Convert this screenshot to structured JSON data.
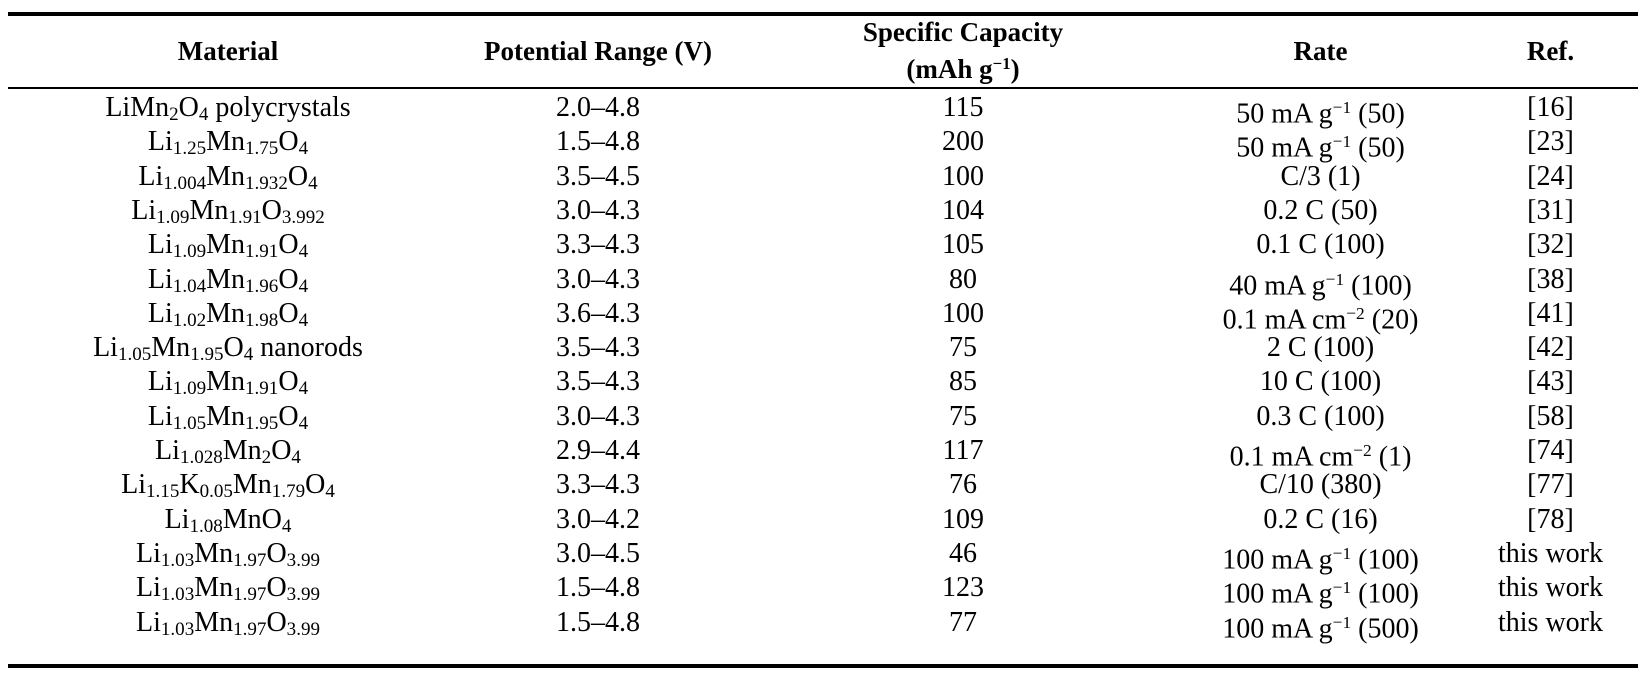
{
  "table": {
    "headers": {
      "material": "Material",
      "potential_range": "Potential Range (V)",
      "capacity_line1": "Specific Capacity",
      "capacity_line2_pre": "(mAh g",
      "capacity_line2_sup": "−1",
      "capacity_line2_post": ")",
      "rate": "Rate",
      "ref": "Ref."
    },
    "rows": [
      {
        "material": [
          [
            "t",
            "LiMn"
          ],
          [
            "s",
            "2"
          ],
          [
            "t",
            "O"
          ],
          [
            "s",
            "4"
          ],
          [
            "t",
            " polycrystals"
          ]
        ],
        "potential": "2.0–4.8",
        "capacity": "115",
        "rate": [
          [
            "t",
            "50 mA g"
          ],
          [
            "p",
            "−1"
          ],
          [
            "t",
            " (50)"
          ]
        ],
        "ref": "[16]"
      },
      {
        "material": [
          [
            "t",
            "Li"
          ],
          [
            "s",
            "1.25"
          ],
          [
            "t",
            "Mn"
          ],
          [
            "s",
            "1.75"
          ],
          [
            "t",
            "O"
          ],
          [
            "s",
            "4"
          ]
        ],
        "potential": "1.5–4.8",
        "capacity": "200",
        "rate": [
          [
            "t",
            "50 mA g"
          ],
          [
            "p",
            "−1"
          ],
          [
            "t",
            " (50)"
          ]
        ],
        "ref": "[23]"
      },
      {
        "material": [
          [
            "t",
            "Li"
          ],
          [
            "s",
            "1.004"
          ],
          [
            "t",
            "Mn"
          ],
          [
            "s",
            "1.932"
          ],
          [
            "t",
            "O"
          ],
          [
            "s",
            "4"
          ]
        ],
        "potential": "3.5–4.5",
        "capacity": "100",
        "rate": [
          [
            "t",
            "C/3 (1)"
          ]
        ],
        "ref": "[24]"
      },
      {
        "material": [
          [
            "t",
            "Li"
          ],
          [
            "s",
            "1.09"
          ],
          [
            "t",
            "Mn"
          ],
          [
            "s",
            "1.91"
          ],
          [
            "t",
            "O"
          ],
          [
            "s",
            "3.992"
          ]
        ],
        "potential": "3.0–4.3",
        "capacity": "104",
        "rate": [
          [
            "t",
            "0.2 C (50)"
          ]
        ],
        "ref": "[31]"
      },
      {
        "material": [
          [
            "t",
            "Li"
          ],
          [
            "s",
            "1.09"
          ],
          [
            "t",
            "Mn"
          ],
          [
            "s",
            "1.91"
          ],
          [
            "t",
            "O"
          ],
          [
            "s",
            "4"
          ]
        ],
        "potential": "3.3–4.3",
        "capacity": "105",
        "rate": [
          [
            "t",
            "0.1 C (100)"
          ]
        ],
        "ref": "[32]"
      },
      {
        "material": [
          [
            "t",
            "Li"
          ],
          [
            "s",
            "1.04"
          ],
          [
            "t",
            "Mn"
          ],
          [
            "s",
            "1.96"
          ],
          [
            "t",
            "O"
          ],
          [
            "s",
            "4"
          ]
        ],
        "potential": "3.0–4.3",
        "capacity": "80",
        "rate": [
          [
            "t",
            "40 mA g"
          ],
          [
            "p",
            "−1"
          ],
          [
            "t",
            " (100)"
          ]
        ],
        "ref": "[38]"
      },
      {
        "material": [
          [
            "t",
            "Li"
          ],
          [
            "s",
            "1.02"
          ],
          [
            "t",
            "Mn"
          ],
          [
            "s",
            "1.98"
          ],
          [
            "t",
            "O"
          ],
          [
            "s",
            "4"
          ]
        ],
        "potential": "3.6–4.3",
        "capacity": "100",
        "rate": [
          [
            "t",
            "0.1 mA cm"
          ],
          [
            "p",
            "−2"
          ],
          [
            "t",
            " (20)"
          ]
        ],
        "ref": "[41]"
      },
      {
        "material": [
          [
            "t",
            "Li"
          ],
          [
            "s",
            "1.05"
          ],
          [
            "t",
            "Mn"
          ],
          [
            "s",
            "1.95"
          ],
          [
            "t",
            "O"
          ],
          [
            "s",
            "4"
          ],
          [
            "t",
            " nanorods"
          ]
        ],
        "potential": "3.5–4.3",
        "capacity": "75",
        "rate": [
          [
            "t",
            "2 C (100)"
          ]
        ],
        "ref": "[42]"
      },
      {
        "material": [
          [
            "t",
            "Li"
          ],
          [
            "s",
            "1.09"
          ],
          [
            "t",
            "Mn"
          ],
          [
            "s",
            "1.91"
          ],
          [
            "t",
            "O"
          ],
          [
            "s",
            "4"
          ]
        ],
        "potential": "3.5–4.3",
        "capacity": "85",
        "rate": [
          [
            "t",
            "10 C (100)"
          ]
        ],
        "ref": "[43]"
      },
      {
        "material": [
          [
            "t",
            "Li"
          ],
          [
            "s",
            "1.05"
          ],
          [
            "t",
            "Mn"
          ],
          [
            "s",
            "1.95"
          ],
          [
            "t",
            "O"
          ],
          [
            "s",
            "4"
          ]
        ],
        "potential": "3.0–4.3",
        "capacity": "75",
        "rate": [
          [
            "t",
            "0.3 C (100)"
          ]
        ],
        "ref": "[58]"
      },
      {
        "material": [
          [
            "t",
            "Li"
          ],
          [
            "s",
            "1.028"
          ],
          [
            "t",
            "Mn"
          ],
          [
            "s",
            "2"
          ],
          [
            "t",
            "O"
          ],
          [
            "s",
            "4"
          ]
        ],
        "potential": "2.9–4.4",
        "capacity": "117",
        "rate": [
          [
            "t",
            "0.1 mA cm"
          ],
          [
            "p",
            "−2"
          ],
          [
            "t",
            " (1)"
          ]
        ],
        "ref": "[74]"
      },
      {
        "material": [
          [
            "t",
            "Li"
          ],
          [
            "s",
            "1.15"
          ],
          [
            "t",
            "K"
          ],
          [
            "s",
            "0.05"
          ],
          [
            "t",
            "Mn"
          ],
          [
            "s",
            "1.79"
          ],
          [
            "t",
            "O"
          ],
          [
            "s",
            "4"
          ]
        ],
        "potential": "3.3–4.3",
        "capacity": "76",
        "rate": [
          [
            "t",
            "C/10 (380)"
          ]
        ],
        "ref": "[77]"
      },
      {
        "material": [
          [
            "t",
            "Li"
          ],
          [
            "s",
            "1.08"
          ],
          [
            "t",
            "MnO"
          ],
          [
            "s",
            "4"
          ]
        ],
        "potential": "3.0–4.2",
        "capacity": "109",
        "rate": [
          [
            "t",
            "0.2 C (16)"
          ]
        ],
        "ref": "[78]"
      },
      {
        "material": [
          [
            "t",
            "Li"
          ],
          [
            "s",
            "1.03"
          ],
          [
            "t",
            "Mn"
          ],
          [
            "s",
            "1.97"
          ],
          [
            "t",
            "O"
          ],
          [
            "s",
            "3.99"
          ]
        ],
        "potential": "3.0–4.5",
        "capacity": "46",
        "rate": [
          [
            "t",
            "100 mA g"
          ],
          [
            "p",
            "−1"
          ],
          [
            "t",
            " (100)"
          ]
        ],
        "ref": "this work"
      },
      {
        "material": [
          [
            "t",
            "Li"
          ],
          [
            "s",
            "1.03"
          ],
          [
            "t",
            "Mn"
          ],
          [
            "s",
            "1.97"
          ],
          [
            "t",
            "O"
          ],
          [
            "s",
            "3.99"
          ]
        ],
        "potential": "1.5–4.8",
        "capacity": "123",
        "rate": [
          [
            "t",
            "100 mA g"
          ],
          [
            "p",
            "−1"
          ],
          [
            "t",
            " (100)"
          ]
        ],
        "ref": "this work"
      },
      {
        "material": [
          [
            "t",
            "Li"
          ],
          [
            "s",
            "1.03"
          ],
          [
            "t",
            "Mn"
          ],
          [
            "s",
            "1.97"
          ],
          [
            "t",
            "O"
          ],
          [
            "s",
            "3.99"
          ]
        ],
        "potential": "1.5–4.8",
        "capacity": "77",
        "rate": [
          [
            "t",
            "100 mA g"
          ],
          [
            "p",
            "−1"
          ],
          [
            "t",
            " (500)"
          ]
        ],
        "ref": "this work"
      }
    ]
  }
}
